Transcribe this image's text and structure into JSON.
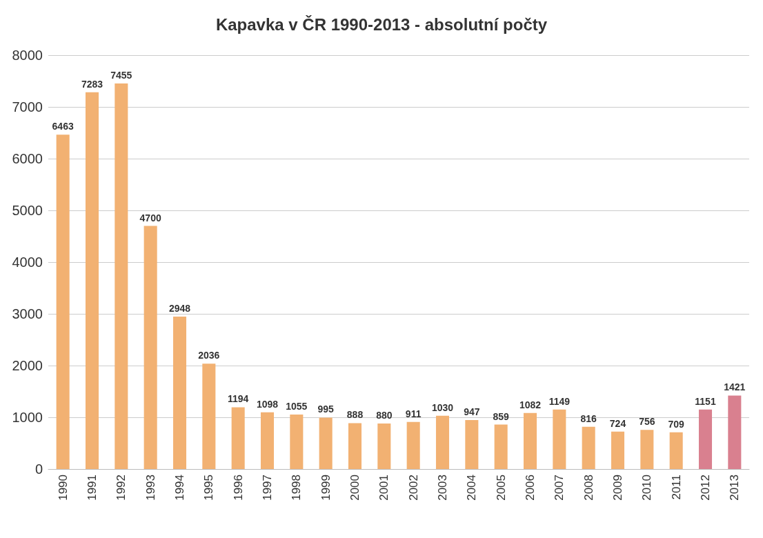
{
  "chart_data": {
    "type": "bar",
    "title": "Kapavka v ČR 1990-2013 - absolutní počty",
    "categories": [
      "1990",
      "1991",
      "1992",
      "1993",
      "1994",
      "1995",
      "1996",
      "1997",
      "1998",
      "1999",
      "2000",
      "2001",
      "2002",
      "2003",
      "2004",
      "2005",
      "2006",
      "2007",
      "2008",
      "2009",
      "2010",
      "2011",
      "2012",
      "2013"
    ],
    "values": [
      6463,
      7283,
      7455,
      4700,
      2948,
      2036,
      1194,
      1098,
      1055,
      995,
      888,
      880,
      911,
      1030,
      947,
      859,
      1082,
      1149,
      816,
      724,
      756,
      709,
      1151,
      1421
    ],
    "colors": [
      "#f2b172",
      "#f2b172",
      "#f2b172",
      "#f2b172",
      "#f2b172",
      "#f2b172",
      "#f2b172",
      "#f2b172",
      "#f2b172",
      "#f2b172",
      "#f2b172",
      "#f2b172",
      "#f2b172",
      "#f2b172",
      "#f2b172",
      "#f2b172",
      "#f2b172",
      "#f2b172",
      "#f2b172",
      "#f2b172",
      "#f2b172",
      "#f2b172",
      "#d9808f",
      "#d9808f"
    ],
    "ylim": [
      0,
      8000
    ],
    "yticks": [
      0,
      1000,
      2000,
      3000,
      4000,
      5000,
      6000,
      7000,
      8000
    ],
    "grid": "y",
    "data_labels": true
  }
}
